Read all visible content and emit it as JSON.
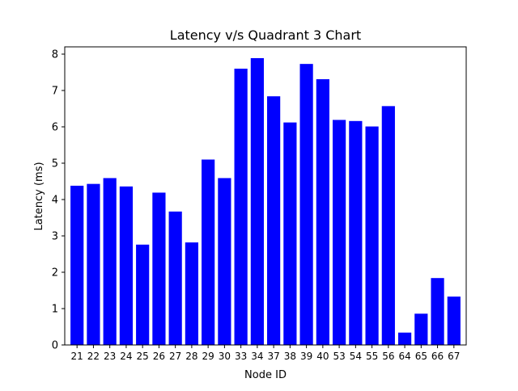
{
  "chart_data": {
    "type": "bar",
    "title": "Latency v/s Quadrant 3 Chart",
    "xlabel": "Node ID",
    "ylabel": "Latency (ms)",
    "ylim": [
      0,
      8.2
    ],
    "yticks": [
      0,
      1,
      2,
      3,
      4,
      5,
      6,
      7,
      8
    ],
    "grid": false,
    "bar_color": "#0000ff",
    "categories": [
      "21",
      "22",
      "23",
      "24",
      "25",
      "26",
      "27",
      "28",
      "29",
      "30",
      "33",
      "34",
      "37",
      "38",
      "39",
      "40",
      "53",
      "54",
      "55",
      "56",
      "64",
      "65",
      "66",
      "67"
    ],
    "values": [
      4.38,
      4.43,
      4.59,
      4.36,
      2.76,
      4.19,
      3.67,
      2.82,
      5.1,
      4.59,
      7.6,
      7.89,
      6.84,
      6.12,
      7.73,
      7.31,
      6.19,
      6.16,
      6.01,
      6.57,
      0.34,
      0.86,
      1.84,
      1.33
    ]
  }
}
